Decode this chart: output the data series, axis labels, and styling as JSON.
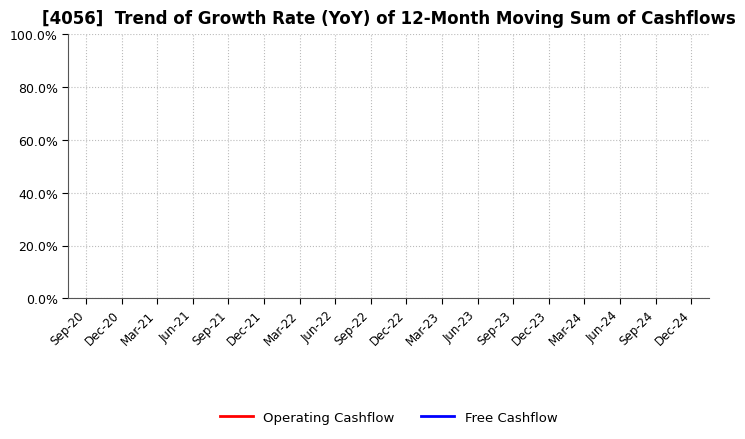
{
  "title": "[4056]  Trend of Growth Rate (YoY) of 12-Month Moving Sum of Cashflows",
  "title_fontsize": 12,
  "ylim": [
    0.0,
    1.0
  ],
  "yticks": [
    0.0,
    0.2,
    0.4,
    0.6,
    0.8,
    1.0
  ],
  "x_tick_labels": [
    "Sep-20",
    "Dec-20",
    "Mar-21",
    "Jun-21",
    "Sep-21",
    "Dec-21",
    "Mar-22",
    "Jun-22",
    "Sep-22",
    "Dec-22",
    "Mar-23",
    "Jun-23",
    "Sep-23",
    "Dec-23",
    "Mar-24",
    "Jun-24",
    "Sep-24",
    "Dec-24"
  ],
  "operating_cashflow_color": "#FF0000",
  "free_cashflow_color": "#0000FF",
  "background_color": "#FFFFFF",
  "grid_color": "#BBBBBB",
  "legend_labels": [
    "Operating Cashflow",
    "Free Cashflow"
  ],
  "legend_colors": [
    "#FF0000",
    "#0000FF"
  ]
}
